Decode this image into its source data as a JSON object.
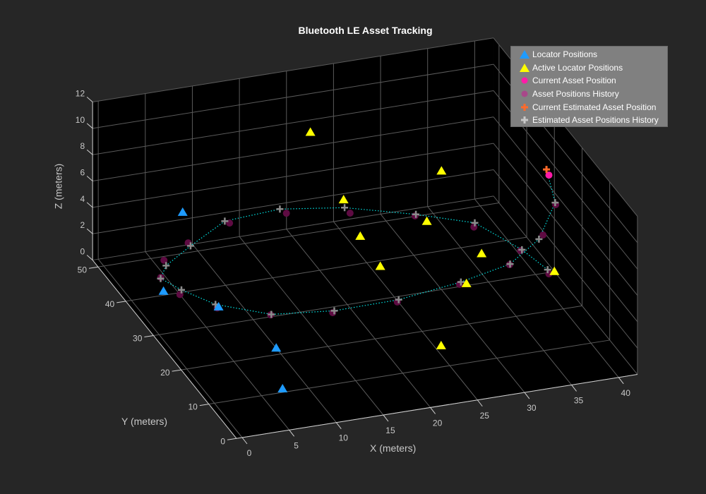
{
  "chart_data": {
    "type": "scatter3d",
    "title": "Bluetooth LE Asset Tracking",
    "xlabel": "X (meters)",
    "ylabel": "Y (meters)",
    "zlabel": "Z (meters)",
    "xlim": [
      -0.6,
      42
    ],
    "ylim": [
      0,
      52
    ],
    "zlim": [
      0,
      12
    ],
    "x_ticks": [
      "0",
      "5",
      "10",
      "15",
      "20",
      "25",
      "30",
      "35",
      "40"
    ],
    "y_ticks": [
      "0",
      "10",
      "20",
      "30",
      "40",
      "50"
    ],
    "z_ticks": [
      "0",
      "2",
      "4",
      "6",
      "8",
      "10",
      "12"
    ],
    "grid": true,
    "legend_position": "top-right",
    "colors": {
      "figure_bg": "#262626",
      "axes_bg": "#000000",
      "grid": "#5a5a5a",
      "locator": "#1e9bff",
      "active_locator": "#ffff00",
      "current_asset": "#ff1aa8",
      "asset_history": "#5e0b42",
      "current_estimate": "#ff6a2a",
      "estimate_history": "#8c8c8c",
      "track_line": "#00e5e5"
    },
    "legend": [
      {
        "label": "Locator Positions",
        "marker": "triangle",
        "color": "#1e9bff"
      },
      {
        "label": "Active Locator Positions",
        "marker": "triangle",
        "color": "#ffff00"
      },
      {
        "label": "Current Asset Position",
        "marker": "circle",
        "color": "#ff1aa8"
      },
      {
        "label": "Asset Positions History",
        "marker": "circle",
        "color": "#a8478a"
      },
      {
        "label": "Current Estimated Asset Position",
        "marker": "plus",
        "color": "#ff6a2a"
      },
      {
        "label": "Estimated Asset Positions History",
        "marker": "plus",
        "color": "#c8c8c8"
      }
    ],
    "series": {
      "locator_positions": [
        [
          7.5,
          47,
          4
        ],
        [
          0.7,
          30.8,
          3
        ],
        [
          4.7,
          24.5,
          3
        ],
        [
          7,
          11.5,
          3
        ],
        [
          4.5,
          0.7,
          3
        ]
      ],
      "active_locator_positions": [
        [
          21.6,
          48.8,
          8
        ],
        [
          35,
          47,
          4
        ],
        [
          24.6,
          47,
          3
        ],
        [
          30.8,
          38,
          3
        ],
        [
          23.4,
          36.9,
          3
        ],
        [
          33.5,
          27.4,
          3
        ],
        [
          23,
          28.3,
          3
        ],
        [
          29.8,
          20.3,
          3
        ],
        [
          39,
          19.8,
          3
        ],
        [
          22.7,
          5.3,
          3
        ]
      ],
      "asset_positions_history": [
        [
          38.8,
          21.1,
          2.5
        ],
        [
          37.9,
          28.3,
          2.5
        ],
        [
          35.3,
          36.3,
          2.5
        ],
        [
          30.6,
          41.6,
          2.5
        ],
        [
          24.7,
          45.0,
          2.5
        ],
        [
          18.7,
          47.6,
          2.5
        ],
        [
          12.6,
          47.4,
          2.5
        ],
        [
          7.2,
          44.0,
          2.5
        ],
        [
          3.6,
          40.5,
          2.5
        ],
        [
          2.0,
          36.2,
          2.5
        ],
        [
          2.5,
          31.0,
          2.5
        ],
        [
          5.0,
          26.0,
          2.5
        ],
        [
          9.5,
          22.0,
          2.5
        ],
        [
          15.5,
          20.0,
          2.5
        ],
        [
          22.4,
          20.1,
          2.5
        ],
        [
          29.6,
          22.1,
          2.5
        ],
        [
          35.8,
          25.1,
          2.5
        ],
        [
          40.2,
          28.0,
          3.5
        ],
        [
          41.2,
          26.8,
          6
        ]
      ],
      "current_asset_position": [
        40.8,
        27.9,
        8
      ],
      "estimated_positions_history": [
        [
          38.9,
          21.9,
          2.6
        ],
        [
          38.2,
          28.8,
          2.4
        ],
        [
          35.6,
          37.0,
          2.6
        ],
        [
          30.9,
          42.3,
          2.4
        ],
        [
          24.5,
          46.3,
          2.6
        ],
        [
          18.3,
          48.6,
          2.6
        ],
        [
          12.3,
          48.1,
          2.5
        ],
        [
          7.4,
          43.8,
          2.3
        ],
        [
          3.8,
          40.4,
          2.1
        ],
        [
          2.1,
          36.6,
          2.3
        ],
        [
          2.9,
          31.8,
          2.6
        ],
        [
          4.9,
          26.3,
          2.7
        ],
        [
          9.6,
          22.1,
          2.5
        ],
        [
          15.7,
          20.1,
          2.6
        ],
        [
          22.6,
          20.3,
          2.6
        ],
        [
          29.8,
          22.3,
          2.6
        ],
        [
          36.0,
          25.6,
          2.4
        ],
        [
          39.8,
          28.1,
          3.2
        ],
        [
          41.2,
          27.0,
          6.1
        ]
      ],
      "current_estimated_position": [
        40.6,
        28.1,
        8.4
      ]
    }
  }
}
